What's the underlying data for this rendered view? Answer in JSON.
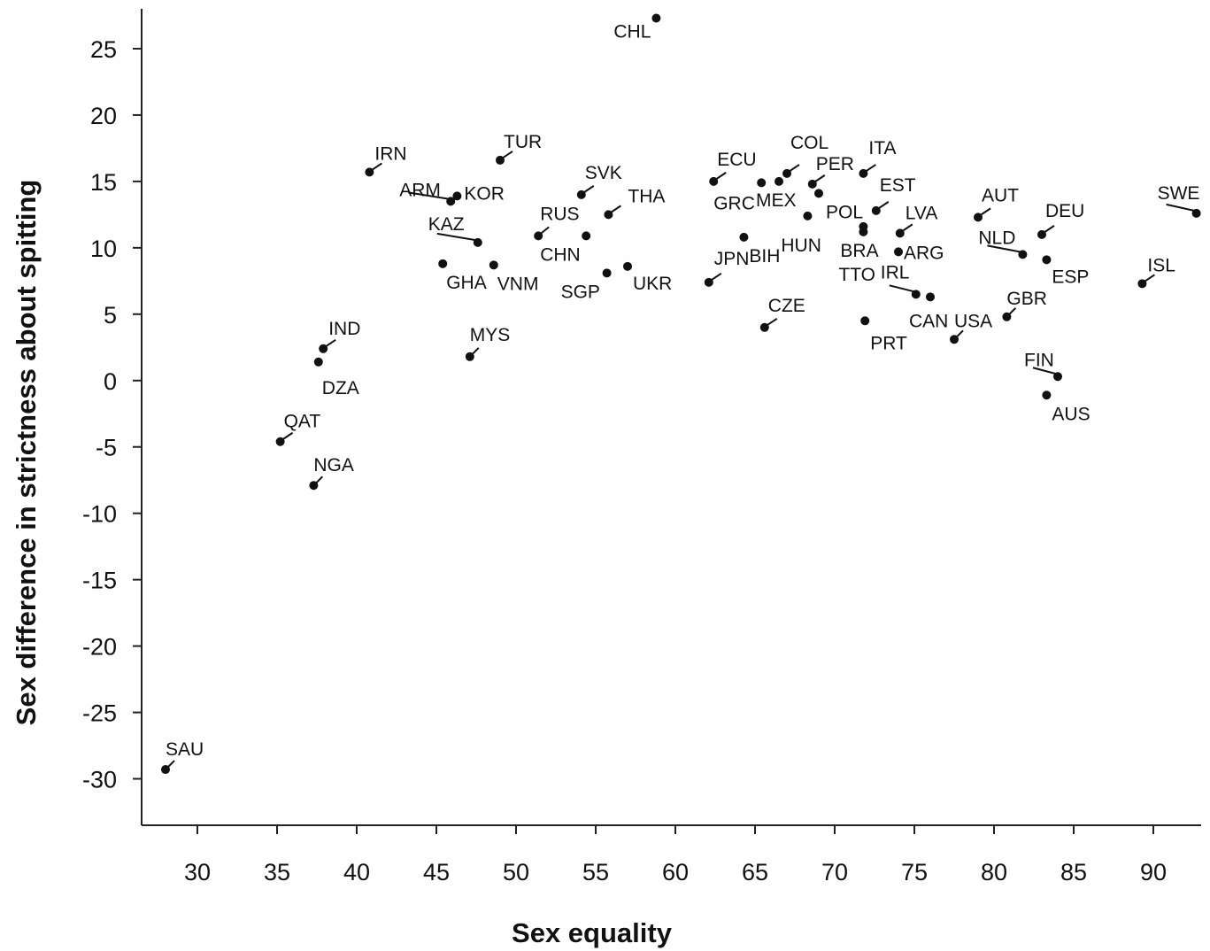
{
  "chart_data": {
    "type": "scatter",
    "xlabel": "Sex equality",
    "ylabel": "Sex difference in strictness about spitting",
    "xlim": [
      26.5,
      93
    ],
    "ylim": [
      -33.5,
      28
    ],
    "xticks": [
      "30",
      "35",
      "40",
      "45",
      "50",
      "55",
      "60",
      "65",
      "70",
      "75",
      "80",
      "85",
      "90"
    ],
    "yticks": [
      "25",
      "20",
      "15",
      "10",
      "5",
      "0",
      "-5",
      "-10",
      "-15",
      "-20",
      "-25",
      "-30"
    ],
    "grid": false,
    "point_color": "#111111",
    "points": [
      {
        "label": "CHL",
        "x": 58.8,
        "y": 27.3
      },
      {
        "label": "IRN",
        "x": 40.8,
        "y": 15.7
      },
      {
        "label": "TUR",
        "x": 49.0,
        "y": 16.6
      },
      {
        "label": "SVK",
        "x": 54.1,
        "y": 14.0
      },
      {
        "label": "ARM",
        "x": 45.9,
        "y": 13.5
      },
      {
        "label": "KOR",
        "x": 46.3,
        "y": 13.9
      },
      {
        "label": "THA",
        "x": 55.8,
        "y": 12.5
      },
      {
        "label": "KAZ",
        "x": 47.6,
        "y": 10.4
      },
      {
        "label": "RUS",
        "x": 51.4,
        "y": 10.9
      },
      {
        "label": "CHN",
        "x": 54.4,
        "y": 10.9
      },
      {
        "label": "GHA",
        "x": 45.4,
        "y": 8.8
      },
      {
        "label": "VNM",
        "x": 48.6,
        "y": 8.7
      },
      {
        "label": "SGP",
        "x": 55.7,
        "y": 8.1
      },
      {
        "label": "UKR",
        "x": 57.0,
        "y": 8.6
      },
      {
        "label": "ECU",
        "x": 62.4,
        "y": 15.0
      },
      {
        "label": "GRC",
        "x": 65.4,
        "y": 14.9
      },
      {
        "label": "MEX",
        "x": 66.5,
        "y": 15.0
      },
      {
        "label": "COL",
        "x": 67.0,
        "y": 15.6
      },
      {
        "label": "PER",
        "x": 68.6,
        "y": 14.8
      },
      {
        "label": "POL",
        "x": 69.0,
        "y": 14.1
      },
      {
        "label": "ITA",
        "x": 71.8,
        "y": 15.6
      },
      {
        "label": "EST",
        "x": 72.6,
        "y": 12.8
      },
      {
        "label": "HUN",
        "x": 68.3,
        "y": 12.4
      },
      {
        "label": "BIH",
        "x": 64.3,
        "y": 10.8
      },
      {
        "label": "JPN",
        "x": 62.1,
        "y": 7.4
      },
      {
        "label": "BRA",
        "x": 71.8,
        "y": 11.6
      },
      {
        "label": "TTO",
        "x": 71.8,
        "y": 11.2
      },
      {
        "label": "LVA",
        "x": 74.1,
        "y": 11.1
      },
      {
        "label": "ARG",
        "x": 74.0,
        "y": 9.7
      },
      {
        "label": "IRL",
        "x": 75.1,
        "y": 6.5
      },
      {
        "label": "CAN",
        "x": 76.0,
        "y": 6.3
      },
      {
        "label": "USA",
        "x": 77.5,
        "y": 3.1
      },
      {
        "label": "CZE",
        "x": 65.6,
        "y": 4.0
      },
      {
        "label": "PRT",
        "x": 71.9,
        "y": 4.5
      },
      {
        "label": "AUT",
        "x": 79.0,
        "y": 12.3
      },
      {
        "label": "DEU",
        "x": 83.0,
        "y": 11.0
      },
      {
        "label": "NLD",
        "x": 81.8,
        "y": 9.5
      },
      {
        "label": "ESP",
        "x": 83.3,
        "y": 9.1
      },
      {
        "label": "GBR",
        "x": 80.8,
        "y": 4.8
      },
      {
        "label": "FIN",
        "x": 84.0,
        "y": 0.3
      },
      {
        "label": "AUS",
        "x": 83.3,
        "y": -1.1
      },
      {
        "label": "SWE",
        "x": 92.7,
        "y": 12.6
      },
      {
        "label": "ISL",
        "x": 89.3,
        "y": 7.3
      },
      {
        "label": "IND",
        "x": 37.9,
        "y": 2.4
      },
      {
        "label": "DZA",
        "x": 37.6,
        "y": 1.4
      },
      {
        "label": "MYS",
        "x": 47.1,
        "y": 1.8
      },
      {
        "label": "QAT",
        "x": 35.2,
        "y": -4.6
      },
      {
        "label": "NGA",
        "x": 37.3,
        "y": -7.9
      },
      {
        "label": "SAU",
        "x": 28.0,
        "y": -29.3
      }
    ]
  }
}
